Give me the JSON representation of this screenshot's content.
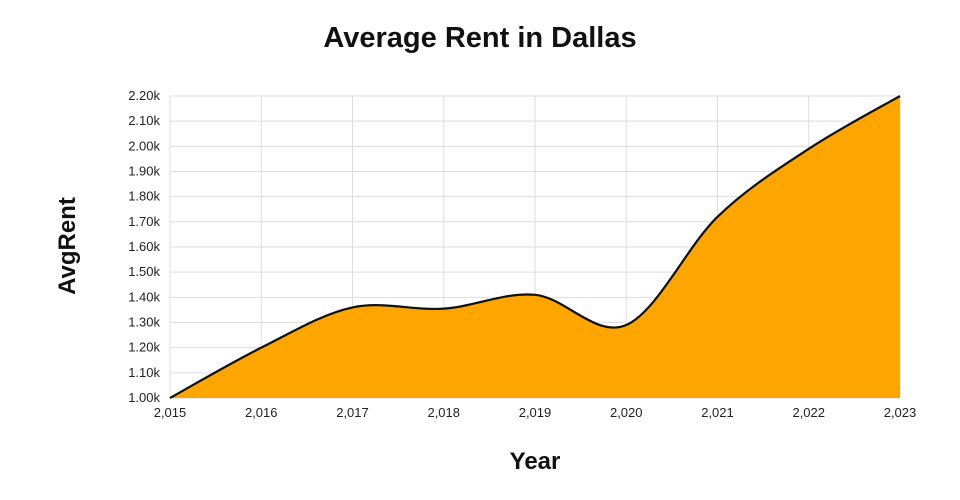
{
  "chart_data": {
    "type": "area",
    "title": "Average Rent in Dallas",
    "xlabel": "Year",
    "ylabel": "AvgRent",
    "x": [
      2015,
      2016,
      2017,
      2018,
      2019,
      2020,
      2021,
      2022,
      2023
    ],
    "x_tick_labels": [
      "2,015",
      "2,016",
      "2,017",
      "2,018",
      "2,019",
      "2,020",
      "2,021",
      "2,022",
      "2,023"
    ],
    "series": [
      {
        "values": [
          1000,
          1200,
          1360,
          1355,
          1410,
          1290,
          1720,
          1990,
          2200
        ]
      }
    ],
    "y_ticks": [
      1000,
      1100,
      1200,
      1300,
      1400,
      1500,
      1600,
      1700,
      1800,
      1900,
      2000,
      2100,
      2200
    ],
    "y_tick_labels": [
      "1.00k",
      "1.10k",
      "1.20k",
      "1.30k",
      "1.40k",
      "1.50k",
      "1.60k",
      "1.70k",
      "1.80k",
      "1.90k",
      "2.00k",
      "2.10k",
      "2.20k"
    ],
    "xlim": [
      2015,
      2023
    ],
    "ylim": [
      1000,
      2200
    ],
    "grid": true,
    "legend": "none",
    "fill_color": "#FFA500",
    "line_color": "#111111"
  }
}
